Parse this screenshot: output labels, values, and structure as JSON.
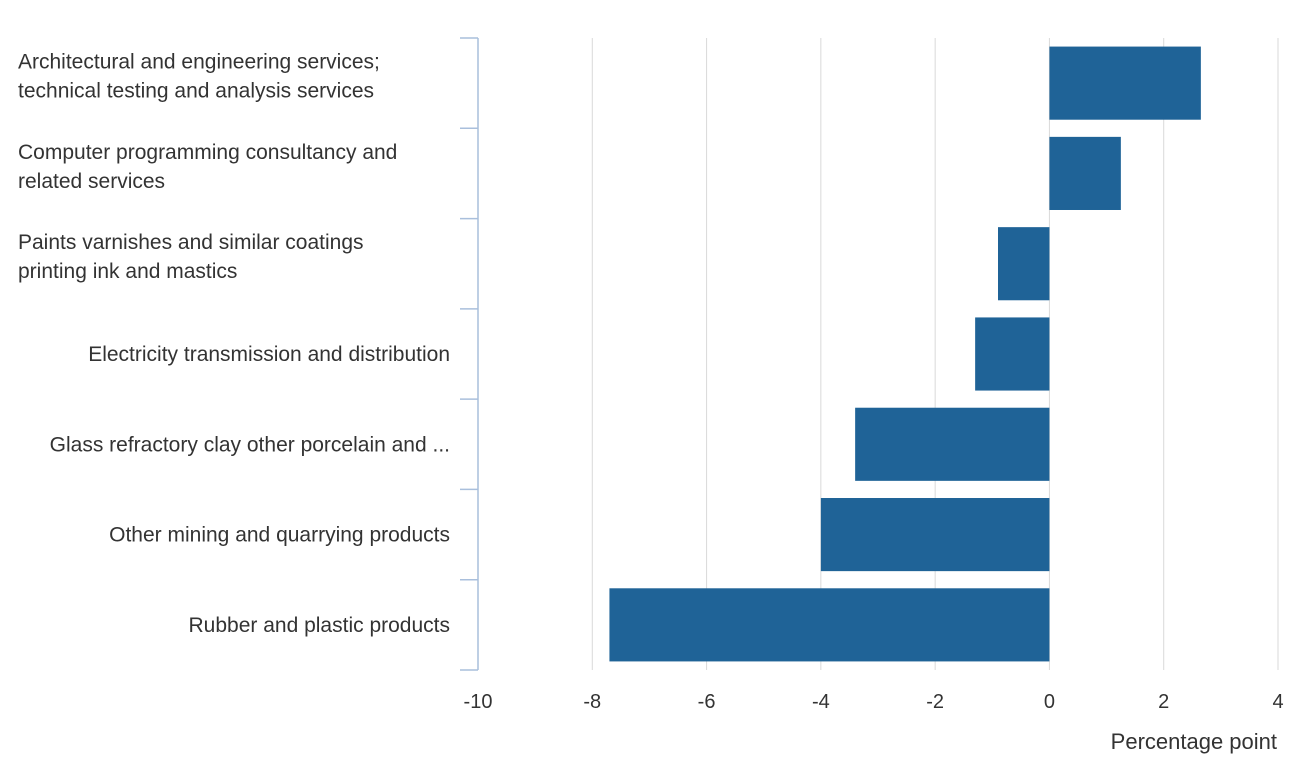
{
  "chart_data": {
    "type": "bar",
    "orientation": "horizontal",
    "title": "",
    "xlabel": "Percentage point",
    "ylabel": "",
    "xlim": [
      -10,
      4
    ],
    "xticks": [
      "-10",
      "-8",
      "-6",
      "-4",
      "-2",
      "0",
      "2",
      "4"
    ],
    "grid": true,
    "bar_color": "#1f6397",
    "categories": [
      [
        "Architectural and engineering services;",
        "technical testing and analysis services"
      ],
      [
        "Computer programming consultancy and",
        "related services"
      ],
      [
        "Paints varnishes and similar coatings",
        "printing ink and mastics"
      ],
      [
        "Electricity transmission and distribution"
      ],
      [
        "Glass refractory clay other porcelain and ..."
      ],
      [
        "Other mining and quarrying products"
      ],
      [
        "Rubber and plastic products"
      ]
    ],
    "values": [
      2.65,
      1.25,
      -0.9,
      -1.3,
      -3.4,
      -4.0,
      -7.7
    ]
  }
}
